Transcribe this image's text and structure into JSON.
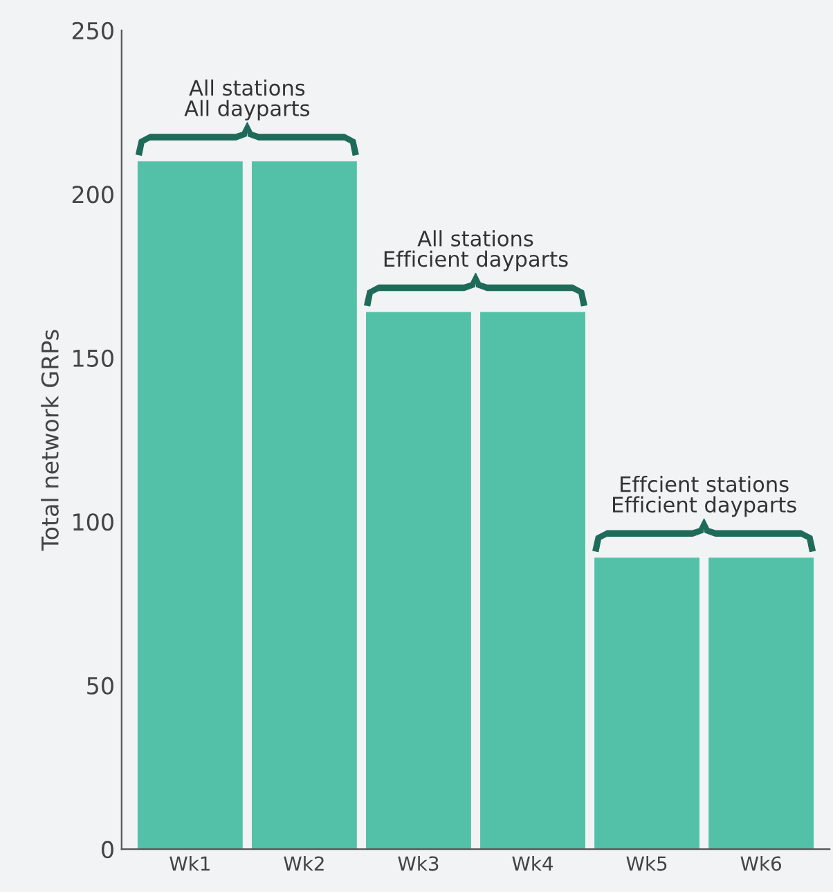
{
  "chart_data": {
    "type": "bar",
    "ylabel": "Total network GRPs",
    "categories": [
      "Wk1",
      "Wk2",
      "Wk3",
      "Wk4",
      "Wk5",
      "Wk6"
    ],
    "values": [
      210,
      210,
      164,
      164,
      89,
      89
    ],
    "color": "#52c1a8",
    "ylim": [
      0,
      250
    ],
    "yticks": [
      0,
      50,
      100,
      150,
      200,
      250
    ],
    "grid": false,
    "annotations": [
      "All stations\nAll dayparts",
      "All stations\nEfficient dayparts",
      "Effcient stations\nEfficient dayparts"
    ]
  }
}
